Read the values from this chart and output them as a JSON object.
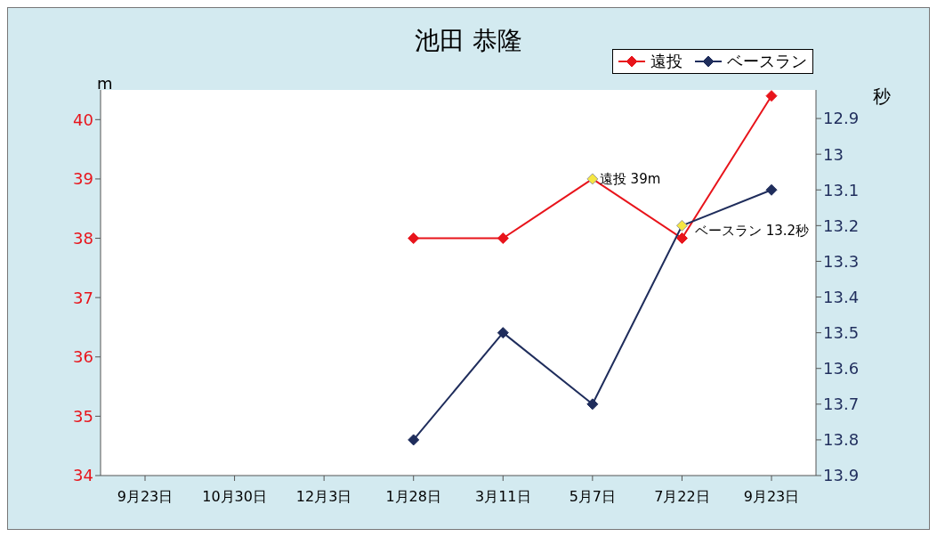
{
  "chart_data": {
    "type": "line",
    "title": "池田 恭隆",
    "categories": [
      "9月23日",
      "10月30日",
      "12月3日",
      "1月28日",
      "3月11日",
      "5月7日",
      "7月22日",
      "9月23日"
    ],
    "series": [
      {
        "name": "遠投",
        "color": "#e8141b",
        "colors": [
          null,
          null,
          null,
          "#e8141b",
          "#e8141b",
          "#f5e642",
          "#e8141b",
          "#e8141b"
        ],
        "values": [
          null,
          null,
          null,
          38,
          38,
          39,
          38,
          40.4
        ]
      },
      {
        "name": "ベースラン",
        "color": "#1f2d5c",
        "colors": [
          null,
          null,
          null,
          "#1f2d5c",
          "#1f2d5c",
          "#1f2d5c",
          "#f5e642",
          "#1f2d5c"
        ],
        "values": [
          null,
          null,
          null,
          13.8,
          13.5,
          13.7,
          13.2,
          13.1
        ],
        "axis": "y2"
      }
    ],
    "ylabel": "m",
    "y2label": "秒",
    "ylim": [
      34,
      40.5
    ],
    "yticks": [
      34,
      35,
      36,
      37,
      38,
      39,
      40
    ],
    "y2lim": [
      13.9,
      12.82
    ],
    "y2ticks": [
      12.9,
      13,
      13.1,
      13.2,
      13.3,
      13.4,
      13.5,
      13.6,
      13.7,
      13.8,
      13.9
    ],
    "annotations": [
      {
        "text": "遠投 39m",
        "x": "5月7日",
        "y": 39
      },
      "ベースラン 13.2秒"
    ],
    "legend": "top right",
    "grid": false,
    "marker": "diamond",
    "line_style": "solid"
  }
}
